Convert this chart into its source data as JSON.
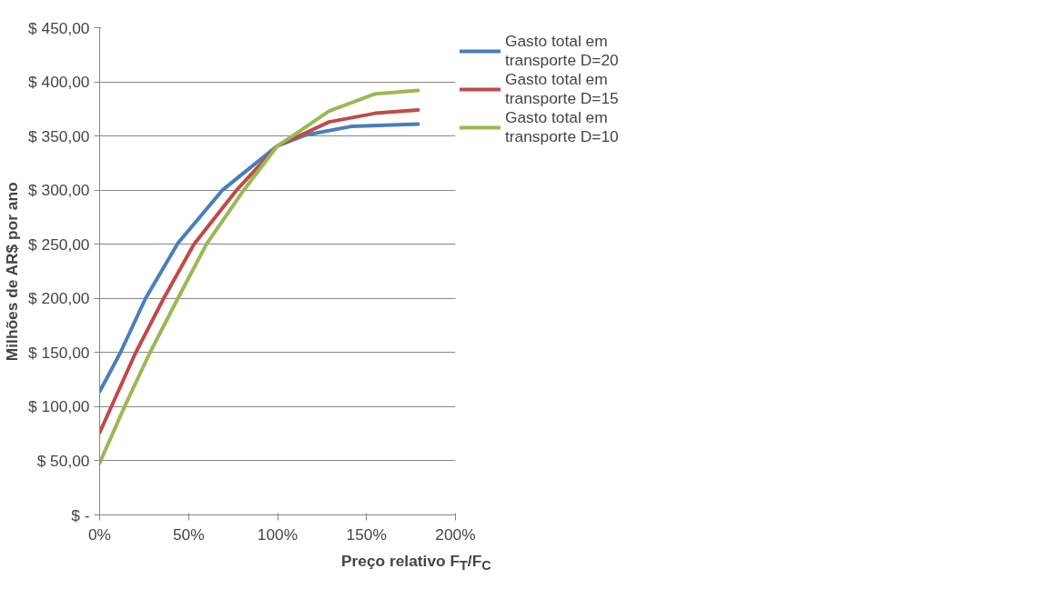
{
  "chart_data": {
    "type": "line",
    "xlabel": "Preço relativo F$_{T}$/F$_{C}$",
    "ylabel": "Milhões de AR$ por ano",
    "xlim": [
      0,
      2
    ],
    "xticks": [
      {
        "value": 0,
        "label": "0%"
      },
      {
        "value": 0.5,
        "label": "50%"
      },
      {
        "value": 1,
        "label": "100%"
      },
      {
        "value": 1.5,
        "label": "150%"
      },
      {
        "value": 2,
        "label": "200%"
      }
    ],
    "ylim": [
      0,
      450
    ],
    "yticks": [
      {
        "value": 0,
        "label": "$ -"
      },
      {
        "value": 50,
        "label": "$ 50,00"
      },
      {
        "value": 100,
        "label": "$ 100,00"
      },
      {
        "value": 150,
        "label": "$ 150,00"
      },
      {
        "value": 200,
        "label": "$ 200,00"
      },
      {
        "value": 250,
        "label": "$ 250,00"
      },
      {
        "value": 300,
        "label": "$ 300,00"
      },
      {
        "value": 350,
        "label": "$ 350,00"
      },
      {
        "value": 400,
        "label": "$ 400,00"
      },
      {
        "value": 450,
        "label": "$ 450,00"
      }
    ],
    "grid": "y",
    "legend": "right",
    "marker": "none",
    "line_style": "solid",
    "series": [
      {
        "name": "Gasto total em transporte D=20",
        "color": "#4a7ebb",
        "x": [
          0,
          0.114,
          0.258,
          0.44,
          0.69,
          1.0,
          1.16,
          1.42,
          1.79
        ],
        "values": [
          114,
          149,
          200,
          251,
          300,
          341,
          351,
          359,
          361
        ]
      },
      {
        "name": "Gasto total em transporte D=15",
        "color": "#be4b48",
        "x": [
          0,
          0.2,
          0.36,
          0.53,
          0.77,
          1.0,
          1.16,
          1.29,
          1.55,
          1.79
        ],
        "values": [
          76,
          149,
          200,
          250,
          300,
          341,
          353,
          363,
          371,
          374
        ]
      },
      {
        "name": "Gasto total em transporte D=10",
        "color": "#98b954",
        "x": [
          0,
          0.14,
          0.28,
          0.44,
          0.6,
          0.81,
          1.0,
          1.12,
          1.29,
          1.55,
          1.79
        ],
        "values": [
          48,
          100,
          149,
          200,
          250,
          300,
          341,
          354,
          373,
          389,
          392
        ]
      }
    ]
  }
}
